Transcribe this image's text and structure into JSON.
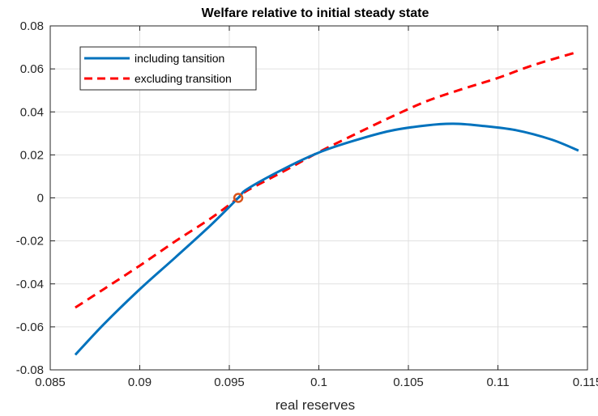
{
  "chart_data": {
    "type": "line",
    "title": "Welfare relative to initial steady state",
    "xlabel": "real reserves",
    "ylabel": "",
    "xlim": [
      0.085,
      0.115
    ],
    "ylim": [
      -0.08,
      0.08
    ],
    "xticks": [
      0.085,
      0.09,
      0.095,
      0.1,
      0.105,
      0.11,
      0.115
    ],
    "xtick_labels": [
      "0.085",
      "0.09",
      "0.095",
      "0.1",
      "0.105",
      "0.11",
      "0.115"
    ],
    "yticks": [
      -0.08,
      -0.06,
      -0.04,
      -0.02,
      0,
      0.02,
      0.04,
      0.06,
      0.08
    ],
    "ytick_labels": [
      "-0.08",
      "-0.06",
      "-0.04",
      "-0.02",
      "0",
      "0.02",
      "0.04",
      "0.06",
      "0.08"
    ],
    "grid": true,
    "legend_position": "top-left",
    "series": [
      {
        "name": "including tansition",
        "color": "#0072BD",
        "style": "solid",
        "x": [
          0.0864,
          0.088,
          0.09,
          0.092,
          0.094,
          0.0955,
          0.096,
          0.098,
          0.1,
          0.102,
          0.104,
          0.106,
          0.1075,
          0.109,
          0.111,
          0.113,
          0.1145
        ],
        "y": [
          -0.073,
          -0.0587,
          -0.0425,
          -0.0276,
          -0.0124,
          0.0,
          0.0041,
          0.0133,
          0.0211,
          0.0267,
          0.0312,
          0.0337,
          0.0345,
          0.0336,
          0.0315,
          0.0271,
          0.022
        ]
      },
      {
        "name": "excluding transition",
        "color": "#FF0000",
        "style": "dashed",
        "x": [
          0.0864,
          0.088,
          0.09,
          0.092,
          0.094,
          0.0955,
          0.096,
          0.098,
          0.1,
          0.102,
          0.104,
          0.106,
          0.108,
          0.11,
          0.112,
          0.1145
        ],
        "y": [
          -0.051,
          -0.0424,
          -0.0315,
          -0.0201,
          -0.0093,
          0.0,
          0.0034,
          0.0122,
          0.0213,
          0.0295,
          0.0375,
          0.0449,
          0.0506,
          0.0558,
          0.0618,
          0.068
        ]
      }
    ],
    "markers": [
      {
        "x": 0.0955,
        "y": 0.0,
        "shape": "circle",
        "color": "#D95319"
      }
    ]
  }
}
